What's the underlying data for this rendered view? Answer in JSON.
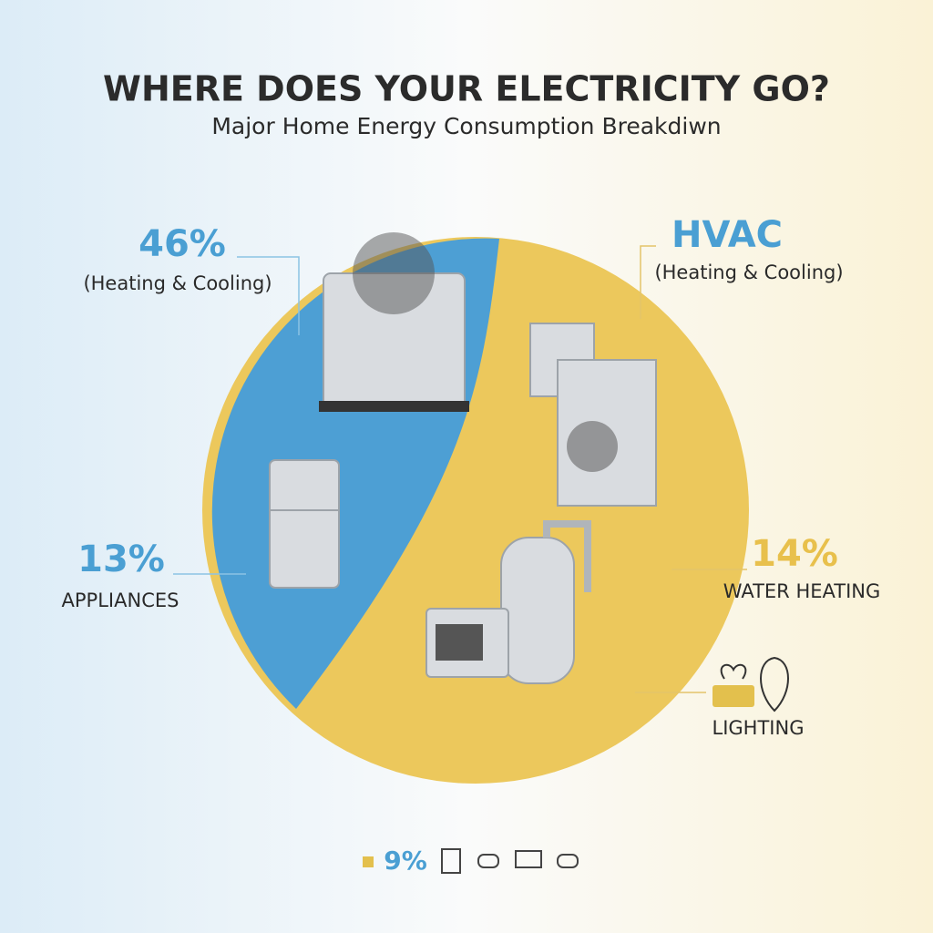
{
  "header": {
    "title": "WHERE DOES YOUR ELECTRICITY GO?",
    "subtitle": "Major Home Energy Consumption Breakdiwn"
  },
  "labels": [
    {
      "value": "46%",
      "caption": "(Heating & Cooling)"
    },
    {
      "value": "HVAC",
      "caption": "(Heating & Cooling)"
    },
    {
      "value": "13%",
      "caption": "APPLIANCES"
    },
    {
      "value": "14%",
      "caption": "WATER HEATING"
    },
    {
      "caption": "LIGHTING"
    }
  ],
  "footer": {
    "value": "9%"
  }
}
